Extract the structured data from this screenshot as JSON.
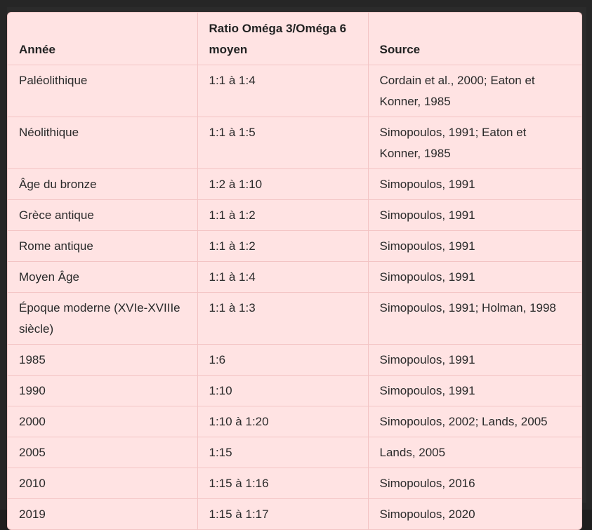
{
  "table": {
    "headers": [
      "Année",
      "Ratio Oméga 3/Oméga 6 moyen",
      "Source"
    ],
    "rows": [
      [
        "Paléolithique",
        "1:1 à 1:4",
        "Cordain et al., 2000; Eaton et Konner, 1985"
      ],
      [
        "Néolithique",
        "1:1 à 1:5",
        "Simopoulos, 1991; Eaton et Konner, 1985"
      ],
      [
        "Âge du bronze",
        "1:2 à 1:10",
        "Simopoulos, 1991"
      ],
      [
        "Grèce antique",
        "1:1 à 1:2",
        "Simopoulos, 1991"
      ],
      [
        "Rome antique",
        "1:1 à 1:2",
        "Simopoulos, 1991"
      ],
      [
        "Moyen Âge",
        "1:1 à 1:4",
        "Simopoulos, 1991"
      ],
      [
        "Époque moderne (XVIe-XVIIIe siècle)",
        "1:1 à 1:3",
        "Simopoulos, 1991; Holman, 1998"
      ],
      [
        "1985",
        "1:6",
        "Simopoulos, 1991"
      ],
      [
        "1990",
        "1:10",
        "Simopoulos, 1991"
      ],
      [
        "2000",
        "1:10 à 1:20",
        "Simopoulos, 2002; Lands, 2005"
      ],
      [
        "2005",
        "1:15",
        "Lands, 2005"
      ],
      [
        "2010",
        "1:15 à 1:16",
        "Simopoulos, 2016"
      ],
      [
        "2019",
        "1:15 à 1:17",
        "Simopoulos, 2020"
      ]
    ]
  }
}
